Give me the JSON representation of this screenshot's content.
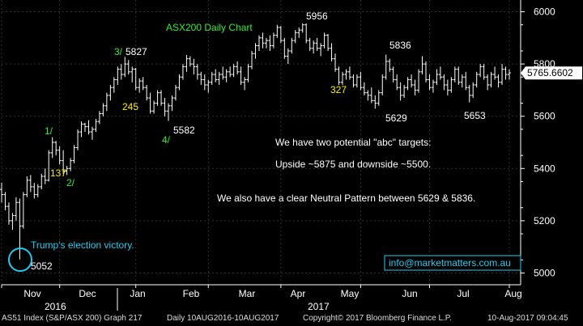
{
  "chart_data": {
    "type": "ohlc",
    "title": "ASX200 Daily Chart",
    "y_ticks": [
      5000,
      5200,
      5400,
      5600,
      5800,
      6000
    ],
    "ylim": [
      4955,
      6045
    ],
    "last_price_label": "5765.6602",
    "last_price": 5765.66,
    "month_labels": [
      "Nov",
      "Dec",
      "Jan",
      "Feb",
      "Mar",
      "Apr",
      "May",
      "Jun",
      "Jul",
      "Aug"
    ],
    "year_labels": [
      "2016",
      "2017"
    ],
    "bars": [
      {
        "o": 5320,
        "h": 5345,
        "l": 5270,
        "c": 5300
      },
      {
        "o": 5300,
        "h": 5310,
        "l": 5240,
        "c": 5255
      },
      {
        "o": 5255,
        "h": 5270,
        "l": 5185,
        "c": 5200
      },
      {
        "o": 5200,
        "h": 5230,
        "l": 5165,
        "c": 5220
      },
      {
        "o": 5220,
        "h": 5290,
        "l": 5200,
        "c": 5270
      },
      {
        "o": 5270,
        "h": 5285,
        "l": 5052,
        "c": 5180
      },
      {
        "o": 5180,
        "h": 5310,
        "l": 5170,
        "c": 5300
      },
      {
        "o": 5300,
        "h": 5370,
        "l": 5290,
        "c": 5355
      },
      {
        "o": 5355,
        "h": 5375,
        "l": 5310,
        "c": 5330
      },
      {
        "o": 5330,
        "h": 5345,
        "l": 5285,
        "c": 5300
      },
      {
        "o": 5300,
        "h": 5340,
        "l": 5290,
        "c": 5330
      },
      {
        "o": 5330,
        "h": 5380,
        "l": 5320,
        "c": 5370
      },
      {
        "o": 5370,
        "h": 5400,
        "l": 5340,
        "c": 5355
      },
      {
        "o": 5355,
        "h": 5470,
        "l": 5350,
        "c": 5460
      },
      {
        "o": 5460,
        "h": 5520,
        "l": 5440,
        "c": 5500
      },
      {
        "o": 5500,
        "h": 5505,
        "l": 5450,
        "c": 5470
      },
      {
        "o": 5470,
        "h": 5485,
        "l": 5415,
        "c": 5430
      },
      {
        "o": 5430,
        "h": 5470,
        "l": 5380,
        "c": 5390
      },
      {
        "o": 5390,
        "h": 5410,
        "l": 5375,
        "c": 5400
      },
      {
        "o": 5400,
        "h": 5440,
        "l": 5390,
        "c": 5430
      },
      {
        "o": 5430,
        "h": 5490,
        "l": 5420,
        "c": 5480
      },
      {
        "o": 5480,
        "h": 5550,
        "l": 5470,
        "c": 5540
      },
      {
        "o": 5540,
        "h": 5580,
        "l": 5520,
        "c": 5570
      },
      {
        "o": 5570,
        "h": 5575,
        "l": 5540,
        "c": 5560
      },
      {
        "o": 5560,
        "h": 5585,
        "l": 5530,
        "c": 5540
      },
      {
        "o": 5540,
        "h": 5560,
        "l": 5510,
        "c": 5550
      },
      {
        "o": 5550,
        "h": 5590,
        "l": 5540,
        "c": 5580
      },
      {
        "o": 5580,
        "h": 5620,
        "l": 5570,
        "c": 5610
      },
      {
        "o": 5610,
        "h": 5650,
        "l": 5600,
        "c": 5640
      },
      {
        "o": 5640,
        "h": 5690,
        "l": 5620,
        "c": 5680
      },
      {
        "o": 5680,
        "h": 5720,
        "l": 5660,
        "c": 5710
      },
      {
        "o": 5710,
        "h": 5750,
        "l": 5690,
        "c": 5740
      },
      {
        "o": 5740,
        "h": 5790,
        "l": 5720,
        "c": 5780
      },
      {
        "o": 5780,
        "h": 5800,
        "l": 5740,
        "c": 5760
      },
      {
        "o": 5760,
        "h": 5827,
        "l": 5750,
        "c": 5800
      },
      {
        "o": 5800,
        "h": 5815,
        "l": 5760,
        "c": 5770
      },
      {
        "o": 5770,
        "h": 5790,
        "l": 5730,
        "c": 5780
      },
      {
        "o": 5780,
        "h": 5785,
        "l": 5700,
        "c": 5710
      },
      {
        "o": 5710,
        "h": 5745,
        "l": 5690,
        "c": 5735
      },
      {
        "o": 5735,
        "h": 5750,
        "l": 5700,
        "c": 5710
      },
      {
        "o": 5710,
        "h": 5720,
        "l": 5660,
        "c": 5670
      },
      {
        "o": 5670,
        "h": 5690,
        "l": 5610,
        "c": 5620
      },
      {
        "o": 5620,
        "h": 5660,
        "l": 5610,
        "c": 5650
      },
      {
        "o": 5650,
        "h": 5700,
        "l": 5640,
        "c": 5690
      },
      {
        "o": 5690,
        "h": 5700,
        "l": 5640,
        "c": 5650
      },
      {
        "o": 5650,
        "h": 5670,
        "l": 5600,
        "c": 5620
      },
      {
        "o": 5620,
        "h": 5650,
        "l": 5582,
        "c": 5640
      },
      {
        "o": 5640,
        "h": 5680,
        "l": 5620,
        "c": 5670
      },
      {
        "o": 5670,
        "h": 5720,
        "l": 5660,
        "c": 5710
      },
      {
        "o": 5710,
        "h": 5760,
        "l": 5700,
        "c": 5750
      },
      {
        "o": 5750,
        "h": 5800,
        "l": 5740,
        "c": 5790
      },
      {
        "o": 5790,
        "h": 5835,
        "l": 5770,
        "c": 5820
      },
      {
        "o": 5820,
        "h": 5830,
        "l": 5790,
        "c": 5800
      },
      {
        "o": 5800,
        "h": 5820,
        "l": 5760,
        "c": 5790
      },
      {
        "o": 5790,
        "h": 5800,
        "l": 5740,
        "c": 5760
      },
      {
        "o": 5760,
        "h": 5770,
        "l": 5720,
        "c": 5740
      },
      {
        "o": 5740,
        "h": 5760,
        "l": 5700,
        "c": 5720
      },
      {
        "o": 5720,
        "h": 5740,
        "l": 5690,
        "c": 5730
      },
      {
        "o": 5730,
        "h": 5770,
        "l": 5720,
        "c": 5760
      },
      {
        "o": 5760,
        "h": 5780,
        "l": 5730,
        "c": 5740
      },
      {
        "o": 5740,
        "h": 5770,
        "l": 5720,
        "c": 5760
      },
      {
        "o": 5760,
        "h": 5790,
        "l": 5740,
        "c": 5750
      },
      {
        "o": 5750,
        "h": 5780,
        "l": 5730,
        "c": 5770
      },
      {
        "o": 5770,
        "h": 5790,
        "l": 5750,
        "c": 5760
      },
      {
        "o": 5760,
        "h": 5800,
        "l": 5750,
        "c": 5790
      },
      {
        "o": 5790,
        "h": 5810,
        "l": 5760,
        "c": 5770
      },
      {
        "o": 5770,
        "h": 5790,
        "l": 5720,
        "c": 5730
      },
      {
        "o": 5730,
        "h": 5750,
        "l": 5700,
        "c": 5740
      },
      {
        "o": 5740,
        "h": 5800,
        "l": 5730,
        "c": 5790
      },
      {
        "o": 5790,
        "h": 5850,
        "l": 5780,
        "c": 5840
      },
      {
        "o": 5840,
        "h": 5880,
        "l": 5820,
        "c": 5870
      },
      {
        "o": 5870,
        "h": 5910,
        "l": 5850,
        "c": 5900
      },
      {
        "o": 5900,
        "h": 5920,
        "l": 5860,
        "c": 5880
      },
      {
        "o": 5880,
        "h": 5900,
        "l": 5860,
        "c": 5890
      },
      {
        "o": 5890,
        "h": 5910,
        "l": 5850,
        "c": 5870
      },
      {
        "o": 5870,
        "h": 5920,
        "l": 5860,
        "c": 5910
      },
      {
        "o": 5910,
        "h": 5950,
        "l": 5900,
        "c": 5940
      },
      {
        "o": 5940,
        "h": 5945,
        "l": 5880,
        "c": 5890
      },
      {
        "o": 5890,
        "h": 5900,
        "l": 5820,
        "c": 5830
      },
      {
        "o": 5830,
        "h": 5860,
        "l": 5800,
        "c": 5850
      },
      {
        "o": 5850,
        "h": 5900,
        "l": 5840,
        "c": 5890
      },
      {
        "o": 5890,
        "h": 5930,
        "l": 5880,
        "c": 5920
      },
      {
        "o": 5920,
        "h": 5940,
        "l": 5900,
        "c": 5930
      },
      {
        "o": 5930,
        "h": 5956,
        "l": 5920,
        "c": 5950
      },
      {
        "o": 5950,
        "h": 5955,
        "l": 5880,
        "c": 5890
      },
      {
        "o": 5890,
        "h": 5900,
        "l": 5850,
        "c": 5860
      },
      {
        "o": 5860,
        "h": 5890,
        "l": 5840,
        "c": 5880
      },
      {
        "o": 5880,
        "h": 5900,
        "l": 5850,
        "c": 5860
      },
      {
        "o": 5860,
        "h": 5880,
        "l": 5830,
        "c": 5870
      },
      {
        "o": 5870,
        "h": 5920,
        "l": 5860,
        "c": 5910
      },
      {
        "o": 5910,
        "h": 5915,
        "l": 5850,
        "c": 5860
      },
      {
        "o": 5860,
        "h": 5880,
        "l": 5810,
        "c": 5820
      },
      {
        "o": 5820,
        "h": 5840,
        "l": 5770,
        "c": 5780
      },
      {
        "o": 5780,
        "h": 5790,
        "l": 5720,
        "c": 5730
      },
      {
        "o": 5730,
        "h": 5770,
        "l": 5720,
        "c": 5760
      },
      {
        "o": 5760,
        "h": 5780,
        "l": 5740,
        "c": 5770
      },
      {
        "o": 5770,
        "h": 5790,
        "l": 5740,
        "c": 5750
      },
      {
        "o": 5750,
        "h": 5760,
        "l": 5710,
        "c": 5720
      },
      {
        "o": 5720,
        "h": 5760,
        "l": 5710,
        "c": 5750
      },
      {
        "o": 5750,
        "h": 5770,
        "l": 5700,
        "c": 5710
      },
      {
        "o": 5710,
        "h": 5730,
        "l": 5680,
        "c": 5690
      },
      {
        "o": 5690,
        "h": 5700,
        "l": 5660,
        "c": 5680
      },
      {
        "o": 5680,
        "h": 5710,
        "l": 5650,
        "c": 5660
      },
      {
        "o": 5660,
        "h": 5680,
        "l": 5629,
        "c": 5650
      },
      {
        "o": 5650,
        "h": 5700,
        "l": 5640,
        "c": 5690
      },
      {
        "o": 5690,
        "h": 5760,
        "l": 5680,
        "c": 5750
      },
      {
        "o": 5750,
        "h": 5836,
        "l": 5740,
        "c": 5810
      },
      {
        "o": 5810,
        "h": 5820,
        "l": 5770,
        "c": 5780
      },
      {
        "o": 5780,
        "h": 5790,
        "l": 5730,
        "c": 5740
      },
      {
        "o": 5740,
        "h": 5760,
        "l": 5700,
        "c": 5710
      },
      {
        "o": 5710,
        "h": 5730,
        "l": 5660,
        "c": 5680
      },
      {
        "o": 5680,
        "h": 5720,
        "l": 5670,
        "c": 5710
      },
      {
        "o": 5710,
        "h": 5750,
        "l": 5700,
        "c": 5740
      },
      {
        "o": 5740,
        "h": 5760,
        "l": 5710,
        "c": 5720
      },
      {
        "o": 5720,
        "h": 5740,
        "l": 5680,
        "c": 5700
      },
      {
        "o": 5700,
        "h": 5780,
        "l": 5690,
        "c": 5770
      },
      {
        "o": 5770,
        "h": 5830,
        "l": 5760,
        "c": 5800
      },
      {
        "o": 5800,
        "h": 5810,
        "l": 5730,
        "c": 5740
      },
      {
        "o": 5740,
        "h": 5760,
        "l": 5700,
        "c": 5710
      },
      {
        "o": 5710,
        "h": 5740,
        "l": 5690,
        "c": 5730
      },
      {
        "o": 5730,
        "h": 5780,
        "l": 5720,
        "c": 5760
      },
      {
        "o": 5760,
        "h": 5790,
        "l": 5740,
        "c": 5750
      },
      {
        "o": 5750,
        "h": 5760,
        "l": 5700,
        "c": 5720
      },
      {
        "o": 5720,
        "h": 5740,
        "l": 5680,
        "c": 5700
      },
      {
        "o": 5700,
        "h": 5750,
        "l": 5690,
        "c": 5740
      },
      {
        "o": 5740,
        "h": 5790,
        "l": 5730,
        "c": 5780
      },
      {
        "o": 5780,
        "h": 5790,
        "l": 5720,
        "c": 5730
      },
      {
        "o": 5730,
        "h": 5760,
        "l": 5710,
        "c": 5750
      },
      {
        "o": 5750,
        "h": 5770,
        "l": 5700,
        "c": 5710
      },
      {
        "o": 5710,
        "h": 5720,
        "l": 5653,
        "c": 5680
      },
      {
        "o": 5680,
        "h": 5730,
        "l": 5670,
        "c": 5720
      },
      {
        "o": 5720,
        "h": 5770,
        "l": 5710,
        "c": 5760
      },
      {
        "o": 5760,
        "h": 5800,
        "l": 5750,
        "c": 5790
      },
      {
        "o": 5790,
        "h": 5800,
        "l": 5740,
        "c": 5750
      },
      {
        "o": 5750,
        "h": 5760,
        "l": 5700,
        "c": 5720
      },
      {
        "o": 5720,
        "h": 5770,
        "l": 5710,
        "c": 5760
      },
      {
        "o": 5760,
        "h": 5790,
        "l": 5740,
        "c": 5750
      },
      {
        "o": 5750,
        "h": 5760,
        "l": 5710,
        "c": 5730
      },
      {
        "o": 5730,
        "h": 5800,
        "l": 5720,
        "c": 5780
      },
      {
        "o": 5780,
        "h": 5790,
        "l": 5740,
        "c": 5760
      },
      {
        "o": 5760,
        "h": 5780,
        "l": 5740,
        "c": 5766
      }
    ],
    "annotations": {
      "wave_labels": [
        {
          "text": "1/",
          "color": "#33ee33"
        },
        {
          "text": "2/",
          "color": "#33ee33"
        },
        {
          "text": "3/",
          "color": "#33ee33"
        },
        {
          "text": "4/",
          "color": "#33ee33"
        }
      ],
      "retrace_labels": [
        {
          "text": "137",
          "color": "#ffee00"
        },
        {
          "text": "245",
          "color": "#ffee00"
        },
        {
          "text": "327",
          "color": "#ffee00"
        }
      ],
      "price_labels": [
        "5052",
        "5827",
        "5582",
        "5956",
        "5836",
        "5629",
        "5653"
      ],
      "event_label": "Trump's election victory.",
      "commentary": [
        "We have two potential \"abc\" targets:",
        "Upside ~5875 and downside ~5500.",
        "We also have a clear Neutral Pattern between 5629 & 5836."
      ],
      "contact": "info@marketmatters.com.au"
    },
    "colors": {
      "background": "#000000",
      "bars": "#ffffff",
      "title": "#33ee33",
      "accent": "#22ccee",
      "last_price_box": "#ffffff"
    }
  },
  "footer": {
    "security": "AS51 Index (S&P/ASX 200) Graph 217",
    "range": "Daily 10AUG2016-10AUG2017",
    "copyright": "Copyright© 2017 Bloomberg Finance L.P.",
    "timestamp": "10-Aug-2017 09:04:45"
  }
}
